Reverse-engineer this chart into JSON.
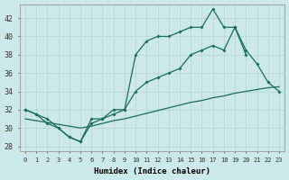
{
  "xlabel": "Humidex (Indice chaleur)",
  "ylabel": "",
  "xlim": [
    -0.5,
    23.5
  ],
  "ylim": [
    27.5,
    43.5
  ],
  "yticks": [
    28,
    30,
    32,
    34,
    36,
    38,
    40,
    42
  ],
  "xticks": [
    0,
    1,
    2,
    3,
    4,
    5,
    6,
    7,
    8,
    9,
    10,
    11,
    12,
    13,
    14,
    15,
    16,
    17,
    18,
    19,
    20,
    21,
    22,
    23
  ],
  "bg_color": "#cce8e8",
  "line_color": "#1a6b60",
  "grid_color": "#b8d8d8",
  "line_mid_x": [
    0,
    1,
    2,
    3,
    4,
    5,
    6,
    7,
    8,
    9,
    10,
    11,
    12,
    13,
    14,
    15,
    16,
    17,
    18,
    19,
    20,
    21,
    22,
    23
  ],
  "line_mid_y": [
    32,
    31.5,
    31,
    30,
    29,
    28.5,
    30.5,
    31,
    31.5,
    32,
    34,
    35,
    35.5,
    36,
    36.5,
    38,
    38.5,
    39,
    38.5,
    41,
    38.5,
    37,
    35,
    34
  ],
  "line_top_x": [
    0,
    1,
    2,
    3,
    4,
    5,
    6,
    7,
    8,
    9,
    10,
    11,
    12,
    13,
    14,
    15,
    16,
    17,
    18,
    19,
    20
  ],
  "line_top_y": [
    32,
    31.5,
    30.5,
    30,
    29,
    28.5,
    31,
    31,
    32,
    32,
    38,
    39.5,
    40,
    40,
    40.5,
    41,
    41,
    43,
    41,
    41,
    38
  ],
  "line_bot_x": [
    0,
    1,
    2,
    3,
    4,
    5,
    6,
    7,
    8,
    9,
    10,
    11,
    12,
    13,
    14,
    15,
    16,
    17,
    18,
    19,
    20,
    21,
    22,
    23
  ],
  "line_bot_y": [
    31,
    30.8,
    30.6,
    30.4,
    30.2,
    30,
    30.2,
    30.5,
    30.8,
    31,
    31.3,
    31.6,
    31.9,
    32.2,
    32.5,
    32.8,
    33,
    33.3,
    33.5,
    33.8,
    34,
    34.2,
    34.4,
    34.5
  ]
}
